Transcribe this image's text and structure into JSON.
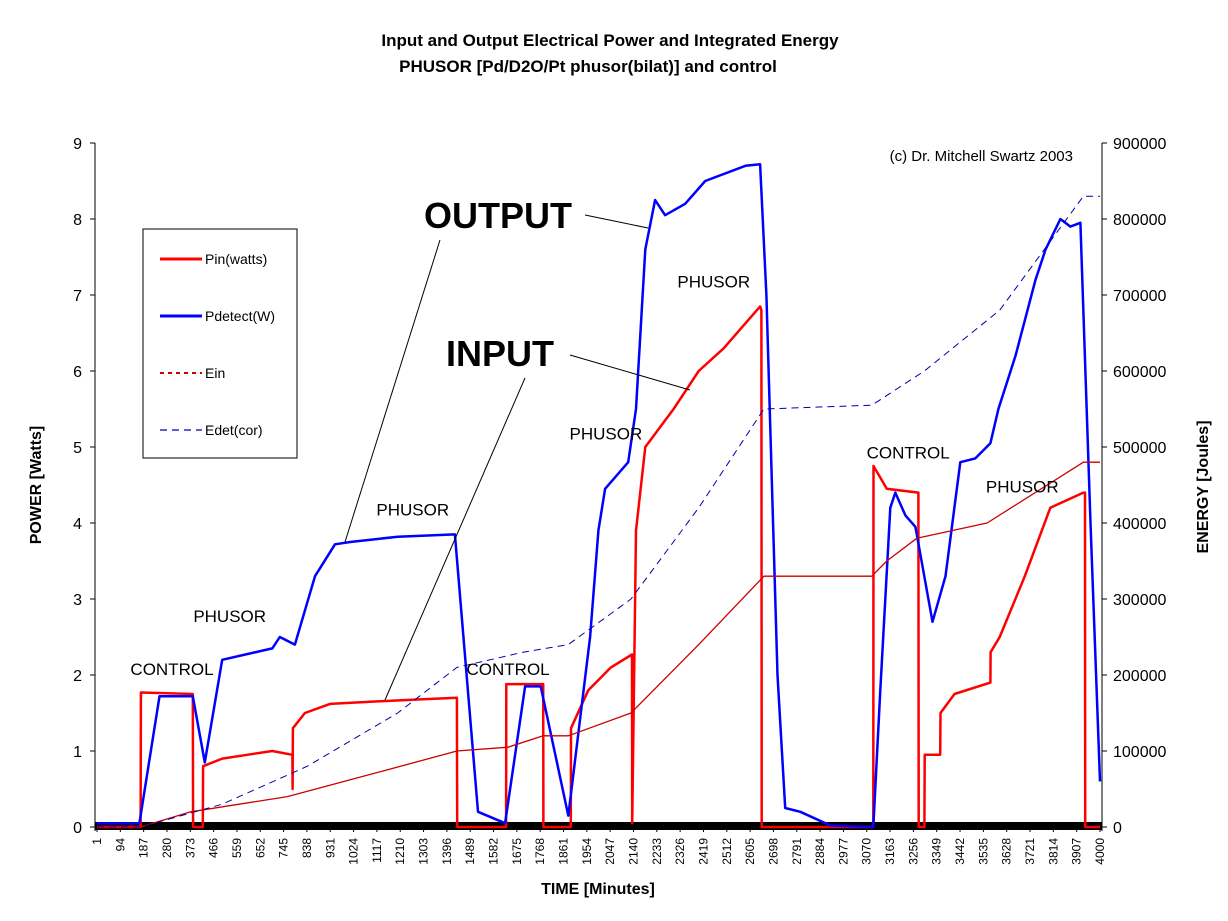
{
  "chart_data": {
    "type": "line",
    "title": "Input and Output Electrical Power and Integrated Energy",
    "subtitle": "PHUSOR [Pd/D2O/Pt phusor(bilat)] and control",
    "xlabel": "TIME [Minutes]",
    "ylabel": "POWER [Watts]",
    "y2label": "ENERGY [Joules]",
    "xlim": [
      1,
      4000
    ],
    "ylim": [
      0,
      9
    ],
    "y2lim": [
      0,
      900000
    ],
    "x_ticks": [
      1,
      94,
      187,
      280,
      373,
      466,
      559,
      652,
      745,
      838,
      931,
      1024,
      1117,
      1210,
      1303,
      1396,
      1489,
      1582,
      1675,
      1768,
      1861,
      1954,
      2047,
      2140,
      2233,
      2326,
      2419,
      2512,
      2605,
      2698,
      2791,
      2884,
      2977,
      3070,
      3163,
      3256,
      3349,
      3442,
      3535,
      3628,
      3721,
      3814,
      3907,
      4000
    ],
    "y_ticks": [
      0,
      1,
      2,
      3,
      4,
      5,
      6,
      7,
      8,
      9
    ],
    "y2_ticks": [
      0,
      100000,
      200000,
      300000,
      400000,
      500000,
      600000,
      700000,
      800000,
      900000
    ],
    "grid": false,
    "legend_placement": "left",
    "copyright": "(c) Dr. Mitchell Swartz 2003",
    "series": [
      {
        "name": "Pin(watts)",
        "axis": "left",
        "color": "#ff0000",
        "style": "solid-thick",
        "x": [
          1,
          175,
          176,
          383,
          384,
          423,
          424,
          500,
          600,
          700,
          780,
          781,
          782,
          830,
          930,
          1100,
          1300,
          1436,
          1437,
          1632,
          1633,
          1780,
          1781,
          1890,
          1891,
          1960,
          2050,
          2134,
          2135,
          2150,
          2187,
          2300,
          2400,
          2500,
          2645,
          2650,
          2651,
          3096,
          3097,
          3150,
          3276,
          3277,
          3300,
          3301,
          3363,
          3364,
          3420,
          3563,
          3564,
          3600,
          3700,
          3802,
          3934,
          3940,
          3941,
          4000
        ],
        "y": [
          0,
          0,
          1.77,
          1.75,
          0,
          0,
          0.8,
          0.9,
          0.95,
          1.0,
          0.95,
          0.5,
          1.3,
          1.5,
          1.62,
          1.65,
          1.68,
          1.7,
          0,
          0,
          1.88,
          1.88,
          0,
          0,
          1.3,
          1.8,
          2.1,
          2.27,
          0.05,
          3.9,
          5.0,
          5.5,
          6.0,
          6.3,
          6.85,
          6.8,
          0,
          0,
          4.75,
          4.45,
          4.4,
          0,
          0,
          0.95,
          0.95,
          1.5,
          1.75,
          1.9,
          2.3,
          2.5,
          3.3,
          4.2,
          4.4,
          4.4,
          0,
          0
        ]
      },
      {
        "name": "Pdetect(W)",
        "axis": "left",
        "color": "#0000ff",
        "style": "solid-thick",
        "x": [
          1,
          170,
          250,
          383,
          431,
          500,
          700,
          730,
          790,
          870,
          950,
          1010,
          1200,
          1428,
          1520,
          1628,
          1708,
          1770,
          1880,
          1967,
          2000,
          2027,
          2119,
          2150,
          2187,
          2226,
          2266,
          2346,
          2426,
          2586,
          2645,
          2670,
          2714,
          2745,
          2805,
          2925,
          3096,
          3124,
          3164,
          3184,
          3224,
          3264,
          3332,
          3384,
          3443,
          3503,
          3563,
          3595,
          3663,
          3743,
          3783,
          3842,
          3882,
          3922,
          3962,
          4000
        ],
        "y": [
          0.05,
          0.05,
          1.72,
          1.72,
          0.85,
          2.2,
          2.35,
          2.5,
          2.4,
          3.3,
          3.72,
          3.75,
          3.82,
          3.85,
          0.2,
          0.05,
          1.85,
          1.85,
          0.15,
          2.5,
          3.9,
          4.45,
          4.8,
          5.5,
          7.6,
          8.25,
          8.05,
          8.2,
          8.5,
          8.7,
          8.72,
          7.0,
          2.0,
          0.25,
          0.2,
          0.02,
          0,
          1.8,
          4.2,
          4.4,
          4.1,
          3.95,
          2.7,
          3.3,
          4.8,
          4.85,
          5.05,
          5.5,
          6.2,
          7.2,
          7.6,
          8.0,
          7.9,
          7.95,
          4.0,
          0.6
        ]
      },
      {
        "name": "Ein",
        "axis": "right",
        "color": "#cc0000",
        "style": "solid-thin",
        "x": [
          1,
          175,
          375,
          760,
          1100,
          1436,
          1640,
          1780,
          1880,
          2130,
          2400,
          2660,
          3090,
          3150,
          3270,
          3550,
          3934,
          4000
        ],
        "y": [
          0,
          0,
          20000,
          40000,
          70000,
          100000,
          105000,
          120000,
          120000,
          150000,
          240000,
          330000,
          330000,
          350000,
          380000,
          400000,
          480000,
          480000
        ]
      },
      {
        "name": "Edet(cor)",
        "axis": "right",
        "color": "#0000aa",
        "style": "dashed-thin",
        "x": [
          1,
          175,
          500,
          840,
          1200,
          1436,
          1700,
          1880,
          2130,
          2400,
          2660,
          3090,
          3300,
          3600,
          3934,
          4000
        ],
        "y": [
          0,
          0,
          30000,
          80000,
          150000,
          210000,
          230000,
          240000,
          300000,
          420000,
          550000,
          555000,
          600000,
          680000,
          830000,
          830000
        ]
      }
    ],
    "annotations": [
      {
        "text": "OUTPUT",
        "style": "large",
        "target_x": 2140,
        "target_y": 7.95
      },
      {
        "text": "INPUT",
        "style": "large",
        "target_x": 2320,
        "target_y": 5.8
      },
      {
        "text": "PHUSOR",
        "x": 530,
        "y": 2.7
      },
      {
        "text": "PHUSOR",
        "x": 1260,
        "y": 4.1
      },
      {
        "text": "PHUSOR",
        "x": 2030,
        "y": 5.1
      },
      {
        "text": "PHUSOR",
        "x": 2460,
        "y": 7.1
      },
      {
        "text": "PHUSOR",
        "x": 3690,
        "y": 4.4
      },
      {
        "text": "CONTROL",
        "x": 300,
        "y": 2.0
      },
      {
        "text": "CONTROL",
        "x": 1640,
        "y": 2.0
      },
      {
        "text": "CONTROL",
        "x": 3235,
        "y": 4.85
      }
    ]
  }
}
